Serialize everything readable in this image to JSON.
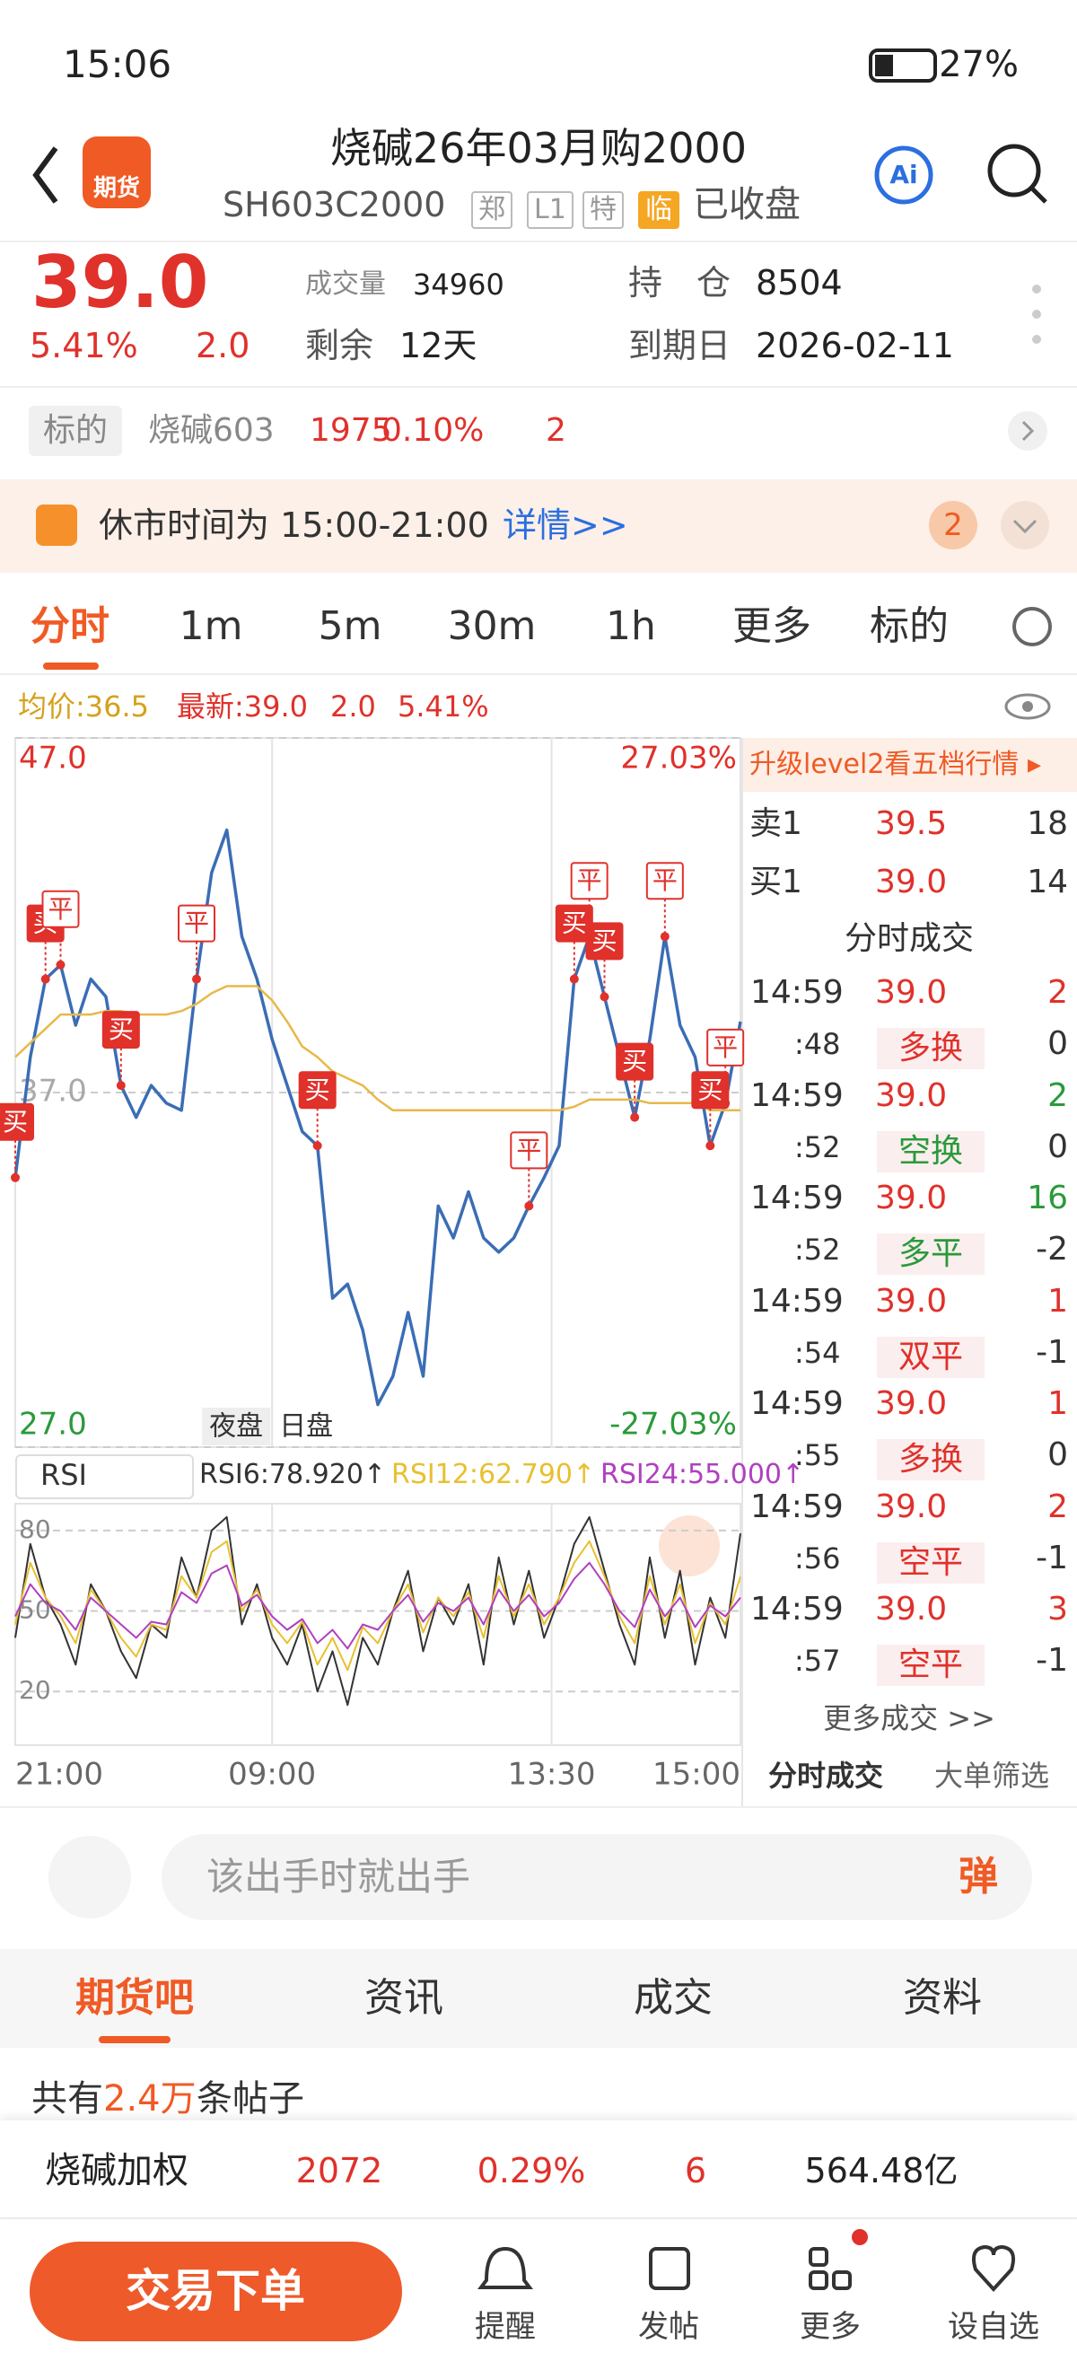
{
  "status_bar": {
    "time": "15:06",
    "battery": "27%"
  },
  "header": {
    "title": "烧碱26年03月购2000",
    "code": "SH603C2000",
    "tags": [
      "郑",
      "L1",
      "特",
      "临"
    ],
    "status": "已收盘",
    "logo": "期货",
    "ai": "Ai"
  },
  "quote": {
    "price": "39.0",
    "change_pct": "5.41%",
    "change": "2.0",
    "volume_label": "成交量",
    "volume": "34960",
    "remaining_label": "剩余",
    "remaining": "12天",
    "oi_label": "持　仓",
    "oi": "8504",
    "expiry_label": "到期日",
    "expiry": "2026-02-11"
  },
  "underlying": {
    "label": "标的",
    "name": "烧碱603",
    "price": "1975",
    "change_pct": "0.10%",
    "change": "2"
  },
  "notice": {
    "text": "休市时间为 15:00-21:00",
    "link": "详情>>",
    "badge": "2"
  },
  "period_tabs": [
    "分时",
    "1m",
    "5m",
    "30m",
    "1h",
    "更多",
    "标的"
  ],
  "info_line": {
    "avg": "均价:36.5",
    "last": "最新:39.0",
    "change": "2.0",
    "change_pct": "5.41%"
  },
  "chart_data": [
    {
      "type": "line",
      "xlim": [
        0,
        48
      ],
      "ylim": [
        27,
        47
      ],
      "yticks": [
        {
          "value": 47,
          "label": "47.0"
        },
        {
          "value": 37,
          "label": "37.0"
        },
        {
          "value": 27,
          "label": "27.0"
        }
      ],
      "y2lim": [
        -27.03,
        27.03
      ],
      "y2ticks": [
        {
          "value": 27.03,
          "label": "27.03%"
        },
        {
          "value": -27.03,
          "label": "-27.03%"
        }
      ],
      "grid": true,
      "session_labels": [
        "夜盘",
        "日盘"
      ],
      "series": [
        {
          "color": "#3a6db5",
          "values": [
            34.6,
            38.0,
            40.2,
            40.6,
            38.9,
            40.2,
            39.7,
            37.2,
            36.3,
            37.2,
            36.7,
            36.5,
            40.2,
            43.2,
            44.4,
            41.4,
            40.2,
            38.5,
            37.2,
            35.9,
            35.5,
            31.2,
            31.6,
            30.3,
            28.2,
            29.0,
            30.8,
            29.0,
            33.8,
            32.9,
            34.2,
            32.9,
            32.5,
            32.9,
            33.8,
            34.6,
            35.5,
            40.2,
            41.4,
            39.7,
            38.0,
            36.3,
            38.5,
            41.4,
            38.9,
            38.0,
            35.5,
            36.7,
            39.0
          ]
        },
        {
          "color": "#e8b84a",
          "values": [
            38.0,
            38.4,
            38.8,
            39.2,
            39.2,
            39.2,
            39.3,
            39.3,
            39.2,
            39.2,
            39.2,
            39.3,
            39.5,
            39.8,
            40.0,
            40.0,
            40.0,
            39.6,
            39.0,
            38.3,
            38.0,
            37.6,
            37.4,
            37.2,
            36.8,
            36.5,
            36.5,
            36.5,
            36.5,
            36.5,
            36.5,
            36.5,
            36.5,
            36.5,
            36.5,
            36.5,
            36.5,
            36.6,
            36.8,
            36.8,
            36.8,
            36.8,
            36.7,
            36.7,
            36.7,
            36.7,
            36.5,
            36.5,
            36.5
          ]
        }
      ],
      "annotations": [
        {
          "x": 0,
          "label": "买",
          "fill": "#e0312b"
        },
        {
          "x": 2,
          "label": "买",
          "fill": "#e0312b"
        },
        {
          "x": 3,
          "label": "平",
          "fill": "#ffffff"
        },
        {
          "x": 7,
          "label": "买",
          "fill": "#e0312b"
        },
        {
          "x": 12,
          "label": "平",
          "fill": "#ffffff"
        },
        {
          "x": 20,
          "label": "买",
          "fill": "#e0312b"
        },
        {
          "x": 34,
          "label": "平",
          "fill": "#ffffff"
        },
        {
          "x": 37,
          "label": "买",
          "fill": "#e0312b"
        },
        {
          "x": 38,
          "label": "平",
          "fill": "#ffffff"
        },
        {
          "x": 39,
          "label": "买",
          "fill": "#e0312b"
        },
        {
          "x": 41,
          "label": "买",
          "fill": "#e0312b"
        },
        {
          "x": 43,
          "label": "平",
          "fill": "#ffffff"
        },
        {
          "x": 46,
          "label": "买",
          "fill": "#e0312b"
        },
        {
          "x": 47,
          "label": "平",
          "fill": "#ffffff"
        }
      ]
    },
    {
      "type": "line",
      "indicator": "RSI",
      "xlim": [
        0,
        48
      ],
      "ylim": [
        0,
        90
      ],
      "yticks": [
        80,
        50,
        20
      ],
      "grid": true,
      "xticks": [
        {
          "value": 0,
          "label": "21:00"
        },
        {
          "value": 17,
          "label": "09:00"
        },
        {
          "value": 35.5,
          "label": "13:30"
        },
        {
          "value": 48,
          "label": "15:00"
        }
      ],
      "series": [
        {
          "name": "RSI6:78.920↑",
          "color": "#333333",
          "values": [
            40,
            75,
            55,
            45,
            30,
            60,
            50,
            35,
            25,
            45,
            40,
            70,
            55,
            80,
            85,
            45,
            60,
            40,
            30,
            45,
            20,
            35,
            15,
            40,
            30,
            50,
            65,
            35,
            55,
            45,
            60,
            30,
            70,
            45,
            65,
            40,
            55,
            75,
            85,
            65,
            45,
            30,
            70,
            40,
            65,
            30,
            55,
            40,
            78.92
          ]
        },
        {
          "name": "RSI12:62.790↑",
          "color": "#e8c030",
          "values": [
            45,
            68,
            55,
            48,
            38,
            58,
            50,
            40,
            33,
            45,
            43,
            63,
            55,
            72,
            76,
            50,
            58,
            45,
            38,
            46,
            30,
            40,
            28,
            44,
            38,
            50,
            60,
            42,
            55,
            48,
            57,
            40,
            63,
            48,
            60,
            45,
            55,
            68,
            76,
            63,
            48,
            38,
            63,
            45,
            60,
            38,
            53,
            45,
            62.79
          ]
        },
        {
          "name": "RSI24:55.000↑",
          "color": "#b040c0",
          "values": [
            48,
            60,
            53,
            50,
            43,
            55,
            50,
            45,
            40,
            46,
            45,
            57,
            53,
            64,
            67,
            52,
            56,
            48,
            43,
            47,
            38,
            43,
            36,
            45,
            43,
            50,
            56,
            46,
            53,
            50,
            55,
            45,
            58,
            50,
            56,
            48,
            53,
            62,
            68,
            60,
            50,
            44,
            58,
            48,
            55,
            44,
            52,
            48,
            55.0
          ]
        }
      ]
    }
  ],
  "right_panel": {
    "banner": "升级level2看五档行情 ▸",
    "book": [
      {
        "label": "卖1",
        "price": "39.5",
        "volume": "18"
      },
      {
        "label": "买1",
        "price": "39.0",
        "volume": "14"
      }
    ],
    "trades_title": "分时成交",
    "trades": [
      {
        "time": "14:59",
        "sec": ":48",
        "price": "39.0",
        "volume": "2",
        "type": "多换",
        "oi": "0",
        "color": "#e0312b"
      },
      {
        "time": "14:59",
        "sec": ":52",
        "price": "39.0",
        "volume": "2",
        "type": "空换",
        "oi": "0",
        "color": "#2a9a3a"
      },
      {
        "time": "14:59",
        "sec": ":52",
        "price": "39.0",
        "volume": "16",
        "type": "多平",
        "oi": "-2",
        "color": "#2a9a3a"
      },
      {
        "time": "14:59",
        "sec": ":54",
        "price": "39.0",
        "volume": "1",
        "type": "双平",
        "oi": "-1",
        "color": "#e0312b"
      },
      {
        "time": "14:59",
        "sec": ":55",
        "price": "39.0",
        "volume": "1",
        "type": "多换",
        "oi": "0",
        "color": "#e0312b"
      },
      {
        "time": "14:59",
        "sec": ":56",
        "price": "39.0",
        "volume": "2",
        "type": "空平",
        "oi": "-1",
        "color": "#e0312b"
      },
      {
        "time": "14:59",
        "sec": ":57",
        "price": "39.0",
        "volume": "3",
        "type": "空平",
        "oi": "-1",
        "color": "#e0312b"
      }
    ],
    "more": "更多成交 >>",
    "tabs": [
      "分时成交",
      "大单筛选"
    ]
  },
  "comment_bar": {
    "placeholder": "该出手时就出手",
    "danmaku": "弹"
  },
  "content_tabs": [
    "期货吧",
    "资讯",
    "成交",
    "资料"
  ],
  "post_count": {
    "prefix": "共有",
    "count": "2.4万",
    "suffix": "条帖子"
  },
  "ticker": {
    "name": "烧碱加权",
    "price": "2072",
    "change_pct": "0.29%",
    "change": "6",
    "amount": "564.48亿"
  },
  "bottom_nav": {
    "trade": "交易下单",
    "items": [
      "提醒",
      "发帖",
      "更多",
      "设自选"
    ]
  }
}
